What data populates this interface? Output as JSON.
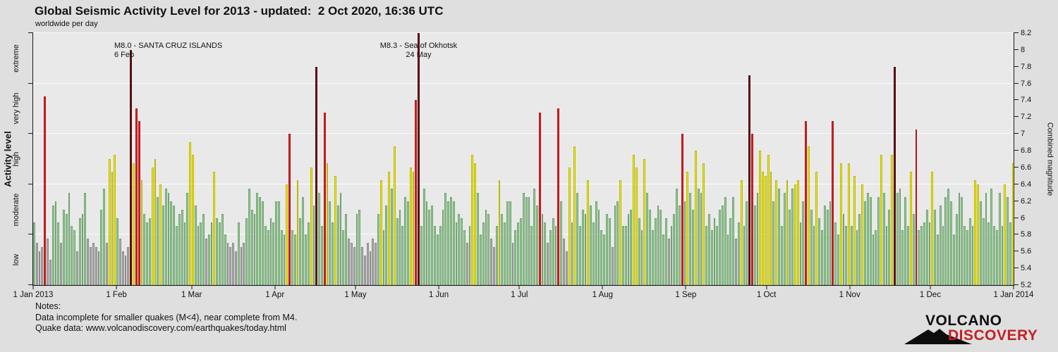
{
  "header": {
    "title": "Global Seismic Activity Level for 2013 - updated:  2 Oct 2020, 16:36 UTC",
    "subtitle": "worldwide per day"
  },
  "chart_data": {
    "type": "bar",
    "title": "Global Seismic Activity Level for 2013",
    "ylabel_left": "Activity level",
    "ylabel_right": "Combined magnitude",
    "ylim": [
      5.2,
      8.2
    ],
    "grid_mags": [
      5.8,
      6.4,
      7.0,
      7.6,
      8.2
    ],
    "left_ticks": [
      5.2,
      5.8,
      6.4,
      7.0,
      7.6,
      8.2
    ],
    "right_ticks": [
      {
        "m": 5.2,
        "label": "5.2"
      },
      {
        "m": 5.4,
        "label": "5.4"
      },
      {
        "m": 5.6,
        "label": "5.6"
      },
      {
        "m": 5.8,
        "label": "5.8"
      },
      {
        "m": 6.0,
        "label": "6"
      },
      {
        "m": 6.2,
        "label": "6.2"
      },
      {
        "m": 6.4,
        "label": "6.4"
      },
      {
        "m": 6.6,
        "label": "6.6"
      },
      {
        "m": 6.8,
        "label": "6.8"
      },
      {
        "m": 7.0,
        "label": "7"
      },
      {
        "m": 7.2,
        "label": "7.2"
      },
      {
        "m": 7.4,
        "label": "7.4"
      },
      {
        "m": 7.6,
        "label": "7.6"
      },
      {
        "m": 7.8,
        "label": "7.8"
      },
      {
        "m": 8.0,
        "label": "8"
      },
      {
        "m": 8.2,
        "label": "8.2"
      }
    ],
    "activity_levels": [
      {
        "label": "low",
        "m": 5.5
      },
      {
        "label": "moderate",
        "m": 6.1
      },
      {
        "label": "high",
        "m": 6.7
      },
      {
        "label": "very high",
        "m": 7.3
      },
      {
        "label": "extreme",
        "m": 7.9
      }
    ],
    "levels": [
      {
        "name": "low",
        "max": 5.8,
        "color": "#b0b0b0"
      },
      {
        "name": "moderate",
        "max": 6.4,
        "color": "#92d092"
      },
      {
        "name": "high",
        "max": 7.0,
        "color": "#f2ec0b"
      },
      {
        "name": "very high",
        "max": 7.6,
        "color": "#e02020"
      },
      {
        "name": "extreme",
        "max": 99,
        "color": "#681111"
      }
    ],
    "months": [
      {
        "label": "1 Jan 2013",
        "day": 0
      },
      {
        "label": "1 Feb",
        "day": 31
      },
      {
        "label": "1 Mar",
        "day": 59
      },
      {
        "label": "1 Apr",
        "day": 90
      },
      {
        "label": "1 May",
        "day": 120
      },
      {
        "label": "1 Jun",
        "day": 151
      },
      {
        "label": "1 Jul",
        "day": 181
      },
      {
        "label": "1 Aug",
        "day": 212
      },
      {
        "label": "1 Sep",
        "day": 243
      },
      {
        "label": "1 Oct",
        "day": 273
      },
      {
        "label": "1 Nov",
        "day": 304
      },
      {
        "label": "1 Dec",
        "day": 334
      },
      {
        "label": "1 Jan 2014",
        "day": 365
      }
    ],
    "annotations": [
      {
        "line1": "M8.0 - SANTA CRUZ ISLANDS",
        "line2": "6 Feb",
        "day": 36.5,
        "align": "left",
        "dx": -24
      },
      {
        "line1": "M8.3 - Sea of Okhotsk",
        "line2": "24 May",
        "day": 143.5,
        "align": "center",
        "dx": 0
      }
    ],
    "days_total": 365,
    "values": [
      5.95,
      5.7,
      5.6,
      5.65,
      7.45,
      5.75,
      5.5,
      6.15,
      6.2,
      5.95,
      5.7,
      6.1,
      6.05,
      6.3,
      5.9,
      5.85,
      5.6,
      6.0,
      6.05,
      6.3,
      5.75,
      5.65,
      5.7,
      5.65,
      5.6,
      6.1,
      6.35,
      5.7,
      6.7,
      6.55,
      6.75,
      6.0,
      5.75,
      5.6,
      5.55,
      5.65,
      8.0,
      6.65,
      7.3,
      7.15,
      6.45,
      6.05,
      5.95,
      6.0,
      6.6,
      6.7,
      6.25,
      6.4,
      6.15,
      6.35,
      6.3,
      6.2,
      6.15,
      5.9,
      6.05,
      6.1,
      5.95,
      6.3,
      6.9,
      6.75,
      6.15,
      5.9,
      5.95,
      6.05,
      5.75,
      5.8,
      5.95,
      6.55,
      6.0,
      5.95,
      6.05,
      5.8,
      5.7,
      5.65,
      5.7,
      5.6,
      5.95,
      5.65,
      5.7,
      6.0,
      6.35,
      6.1,
      6.05,
      6.3,
      6.25,
      6.2,
      5.9,
      5.85,
      6.0,
      5.95,
      6.2,
      6.2,
      5.85,
      5.8,
      6.4,
      7.0,
      5.85,
      5.8,
      6.45,
      6.0,
      6.25,
      5.8,
      5.95,
      6.6,
      6.15,
      7.8,
      6.3,
      5.9,
      7.25,
      6.65,
      6.2,
      5.95,
      6.5,
      6.15,
      6.3,
      5.85,
      6.05,
      5.75,
      5.7,
      5.65,
      6.05,
      6.1,
      5.65,
      5.55,
      5.7,
      5.6,
      5.75,
      5.7,
      6.05,
      6.45,
      5.85,
      6.15,
      6.55,
      6.35,
      6.85,
      6.0,
      6.1,
      5.9,
      6.25,
      6.2,
      6.6,
      6.55,
      7.4,
      8.2,
      5.9,
      6.35,
      6.2,
      6.1,
      6.15,
      5.9,
      5.8,
      5.9,
      6.1,
      6.3,
      6.2,
      6.25,
      6.2,
      5.95,
      6.05,
      6.0,
      5.85,
      5.7,
      5.9,
      6.75,
      6.65,
      6.3,
      5.8,
      5.95,
      6.1,
      6.05,
      5.75,
      5.65,
      5.9,
      6.45,
      6.05,
      5.95,
      6.2,
      6.2,
      5.7,
      5.85,
      5.95,
      6.0,
      6.3,
      6.25,
      6.25,
      5.9,
      6.35,
      6.15,
      7.25,
      6.05,
      5.95,
      5.7,
      5.85,
      6.0,
      5.9,
      7.3,
      6.2,
      5.75,
      5.6,
      6.6,
      5.95,
      6.85,
      6.3,
      5.9,
      6.1,
      6.05,
      6.45,
      6.15,
      5.95,
      6.2,
      6.1,
      5.85,
      5.8,
      6.05,
      6.0,
      5.65,
      6.15,
      6.2,
      6.45,
      5.9,
      5.9,
      6.05,
      6.1,
      6.75,
      6.6,
      6.0,
      5.85,
      6.7,
      6.3,
      6.1,
      5.85,
      6.0,
      6.15,
      6.1,
      5.8,
      6.0,
      5.75,
      5.9,
      6.05,
      6.35,
      6.15,
      7.0,
      6.2,
      6.55,
      6.3,
      6.1,
      6.8,
      6.35,
      6.3,
      6.65,
      5.9,
      6.05,
      5.85,
      6.0,
      5.9,
      6.1,
      6.15,
      6.25,
      5.8,
      6.0,
      6.25,
      5.75,
      5.95,
      6.45,
      5.9,
      6.2,
      7.7,
      7.0,
      6.15,
      6.3,
      6.8,
      6.55,
      6.5,
      6.75,
      6.55,
      6.2,
      6.45,
      6.35,
      5.9,
      6.3,
      6.45,
      6.1,
      6.35,
      6.4,
      6.45,
      5.95,
      6.2,
      7.15,
      6.85,
      6.1,
      5.9,
      6.55,
      6.0,
      5.85,
      6.15,
      6.1,
      6.2,
      7.15,
      5.95,
      5.8,
      6.65,
      6.05,
      5.9,
      6.65,
      5.9,
      6.5,
      5.85,
      6.05,
      6.4,
      6.2,
      6.3,
      6.25,
      5.8,
      5.85,
      6.25,
      6.75,
      6.3,
      5.9,
      6.1,
      6.75,
      7.8,
      6.3,
      6.35,
      5.85,
      6.25,
      5.9,
      6.55,
      6.05,
      7.05,
      5.85,
      5.9,
      5.95,
      6.1,
      5.95,
      6.55,
      6.1,
      5.8,
      6.15,
      5.9,
      6.25,
      6.35,
      6.2,
      5.8,
      6.05,
      6.3,
      6.25,
      5.9,
      5.85,
      6.0,
      5.9,
      6.45,
      6.4,
      6.2,
      6.0,
      6.3,
      5.95,
      6.35,
      5.9,
      5.85,
      6.3,
      5.9,
      6.4,
      6.25,
      5.95,
      6.65
    ]
  },
  "notes": {
    "heading": "Notes:",
    "line1": "Data incomplete for smaller quakes (M<4), near complete from M4.",
    "line2": "Quake data: www.volcanodiscovery.com/earthquakes/today.html"
  },
  "logo": {
    "line1": "VOLCANO",
    "line2": "DISCOVERY",
    "red": "#c32026",
    "black": "#0d0d0d"
  }
}
